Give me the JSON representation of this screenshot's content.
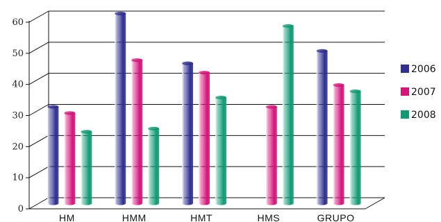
{
  "chart_data": {
    "type": "bar",
    "categories": [
      "HM",
      "HMM",
      "HMT",
      "HMS",
      "GRUPO"
    ],
    "series": [
      {
        "name": "2006",
        "color": "#2e2f8e",
        "values": [
          31,
          61,
          45,
          null,
          49
        ]
      },
      {
        "name": "2007",
        "color": "#d4147a",
        "values": [
          29,
          46,
          42,
          31,
          38
        ]
      },
      {
        "name": "2008",
        "color": "#0f9a73",
        "values": [
          23,
          24,
          34,
          57,
          36
        ]
      }
    ],
    "yticks": [
      "0",
      "10",
      "20",
      "30",
      "40",
      "50",
      "60"
    ],
    "ylim": [
      0,
      60
    ],
    "grid": true,
    "legend": "right",
    "style": "3d-cylinder"
  }
}
